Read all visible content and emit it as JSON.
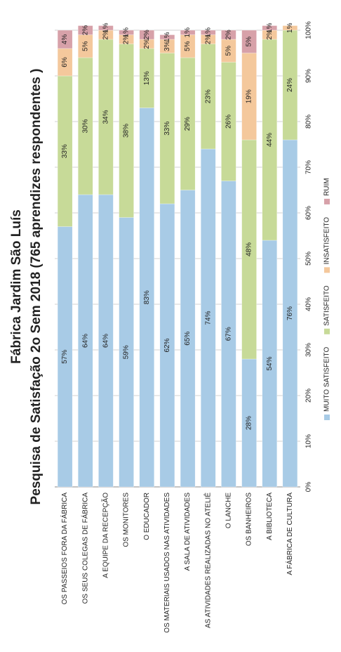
{
  "chart_data": {
    "type": "stacked_bar_horizontal",
    "title": "Fábrica Jardim São Luís",
    "subtitle": "Pesquisa de Satisfação 2o Sem 2018 (765 aprendizes respondentes )",
    "categories": [
      "OS PASSEIOS FORA DA FÁBRICA",
      "OS SEUS COLEGAS DE FÁBRICA",
      "A EQUIPE DA RECEPÇÃO",
      "OS MONITORES",
      "O EDUCADOR",
      "OS MATERIAIS USADOS NAS ATIVIDADES",
      "A SALA DE ATIVIDADES",
      "AS ATIVIDADES REALIZADAS NO ATELIÊ",
      "O LANCHE",
      "OS BANHEIROS",
      "A BIBLIOTECA",
      "A FÁBRICA DE CULTURA"
    ],
    "series": [
      {
        "name": "MUITO SATISFEITO",
        "color": "#a8cbe6",
        "values": [
          57,
          64,
          64,
          59,
          83,
          62,
          65,
          74,
          67,
          28,
          54,
          76
        ],
        "value_labels": [
          "57%",
          "64%",
          "64%",
          "59%",
          "83%",
          "62%",
          "65%",
          "74%",
          "67%",
          "28%",
          "54%",
          "76%"
        ]
      },
      {
        "name": "SATISFEITO",
        "color": "#c7da98",
        "values": [
          33,
          30,
          34,
          38,
          13,
          33,
          29,
          23,
          26,
          48,
          44,
          24
        ],
        "value_labels": [
          "33%",
          "30%",
          "34%",
          "38%",
          "13%",
          "33%",
          "29%",
          "23%",
          "26%",
          "48%",
          "44%",
          "24%"
        ]
      },
      {
        "name": "INSATISFEITO",
        "color": "#f4c89c",
        "values": [
          6,
          5,
          2,
          2,
          2,
          3,
          5,
          2,
          5,
          19,
          2,
          1
        ],
        "value_labels": [
          "6%",
          "5%",
          "2%",
          "2%",
          "2%",
          "3%",
          "5%",
          "2%",
          "5%",
          "19%",
          "2%",
          "1%"
        ]
      },
      {
        "name": "RUIM",
        "color": "#d7a1a9",
        "values": [
          4,
          2,
          1,
          1,
          2,
          1,
          1,
          1,
          2,
          5,
          1,
          0
        ],
        "value_labels": [
          "4%",
          "2%",
          "1%",
          "1%",
          "2%",
          "1%",
          "1%",
          "1%",
          "2%",
          "5%",
          "1%",
          "0%"
        ]
      }
    ],
    "xlim": [
      0,
      100
    ],
    "xticks": [
      {
        "value": 0,
        "label": "0%"
      },
      {
        "value": 10,
        "label": "10%"
      },
      {
        "value": 20,
        "label": "20%"
      },
      {
        "value": 30,
        "label": "30%"
      },
      {
        "value": 40,
        "label": "40%"
      },
      {
        "value": 50,
        "label": "50%"
      },
      {
        "value": 60,
        "label": "60%"
      },
      {
        "value": 70,
        "label": "70%"
      },
      {
        "value": 80,
        "label": "80%"
      },
      {
        "value": 90,
        "label": "90%"
      },
      {
        "value": 100,
        "label": "100%"
      }
    ],
    "grid": true,
    "legend": "bottom"
  }
}
